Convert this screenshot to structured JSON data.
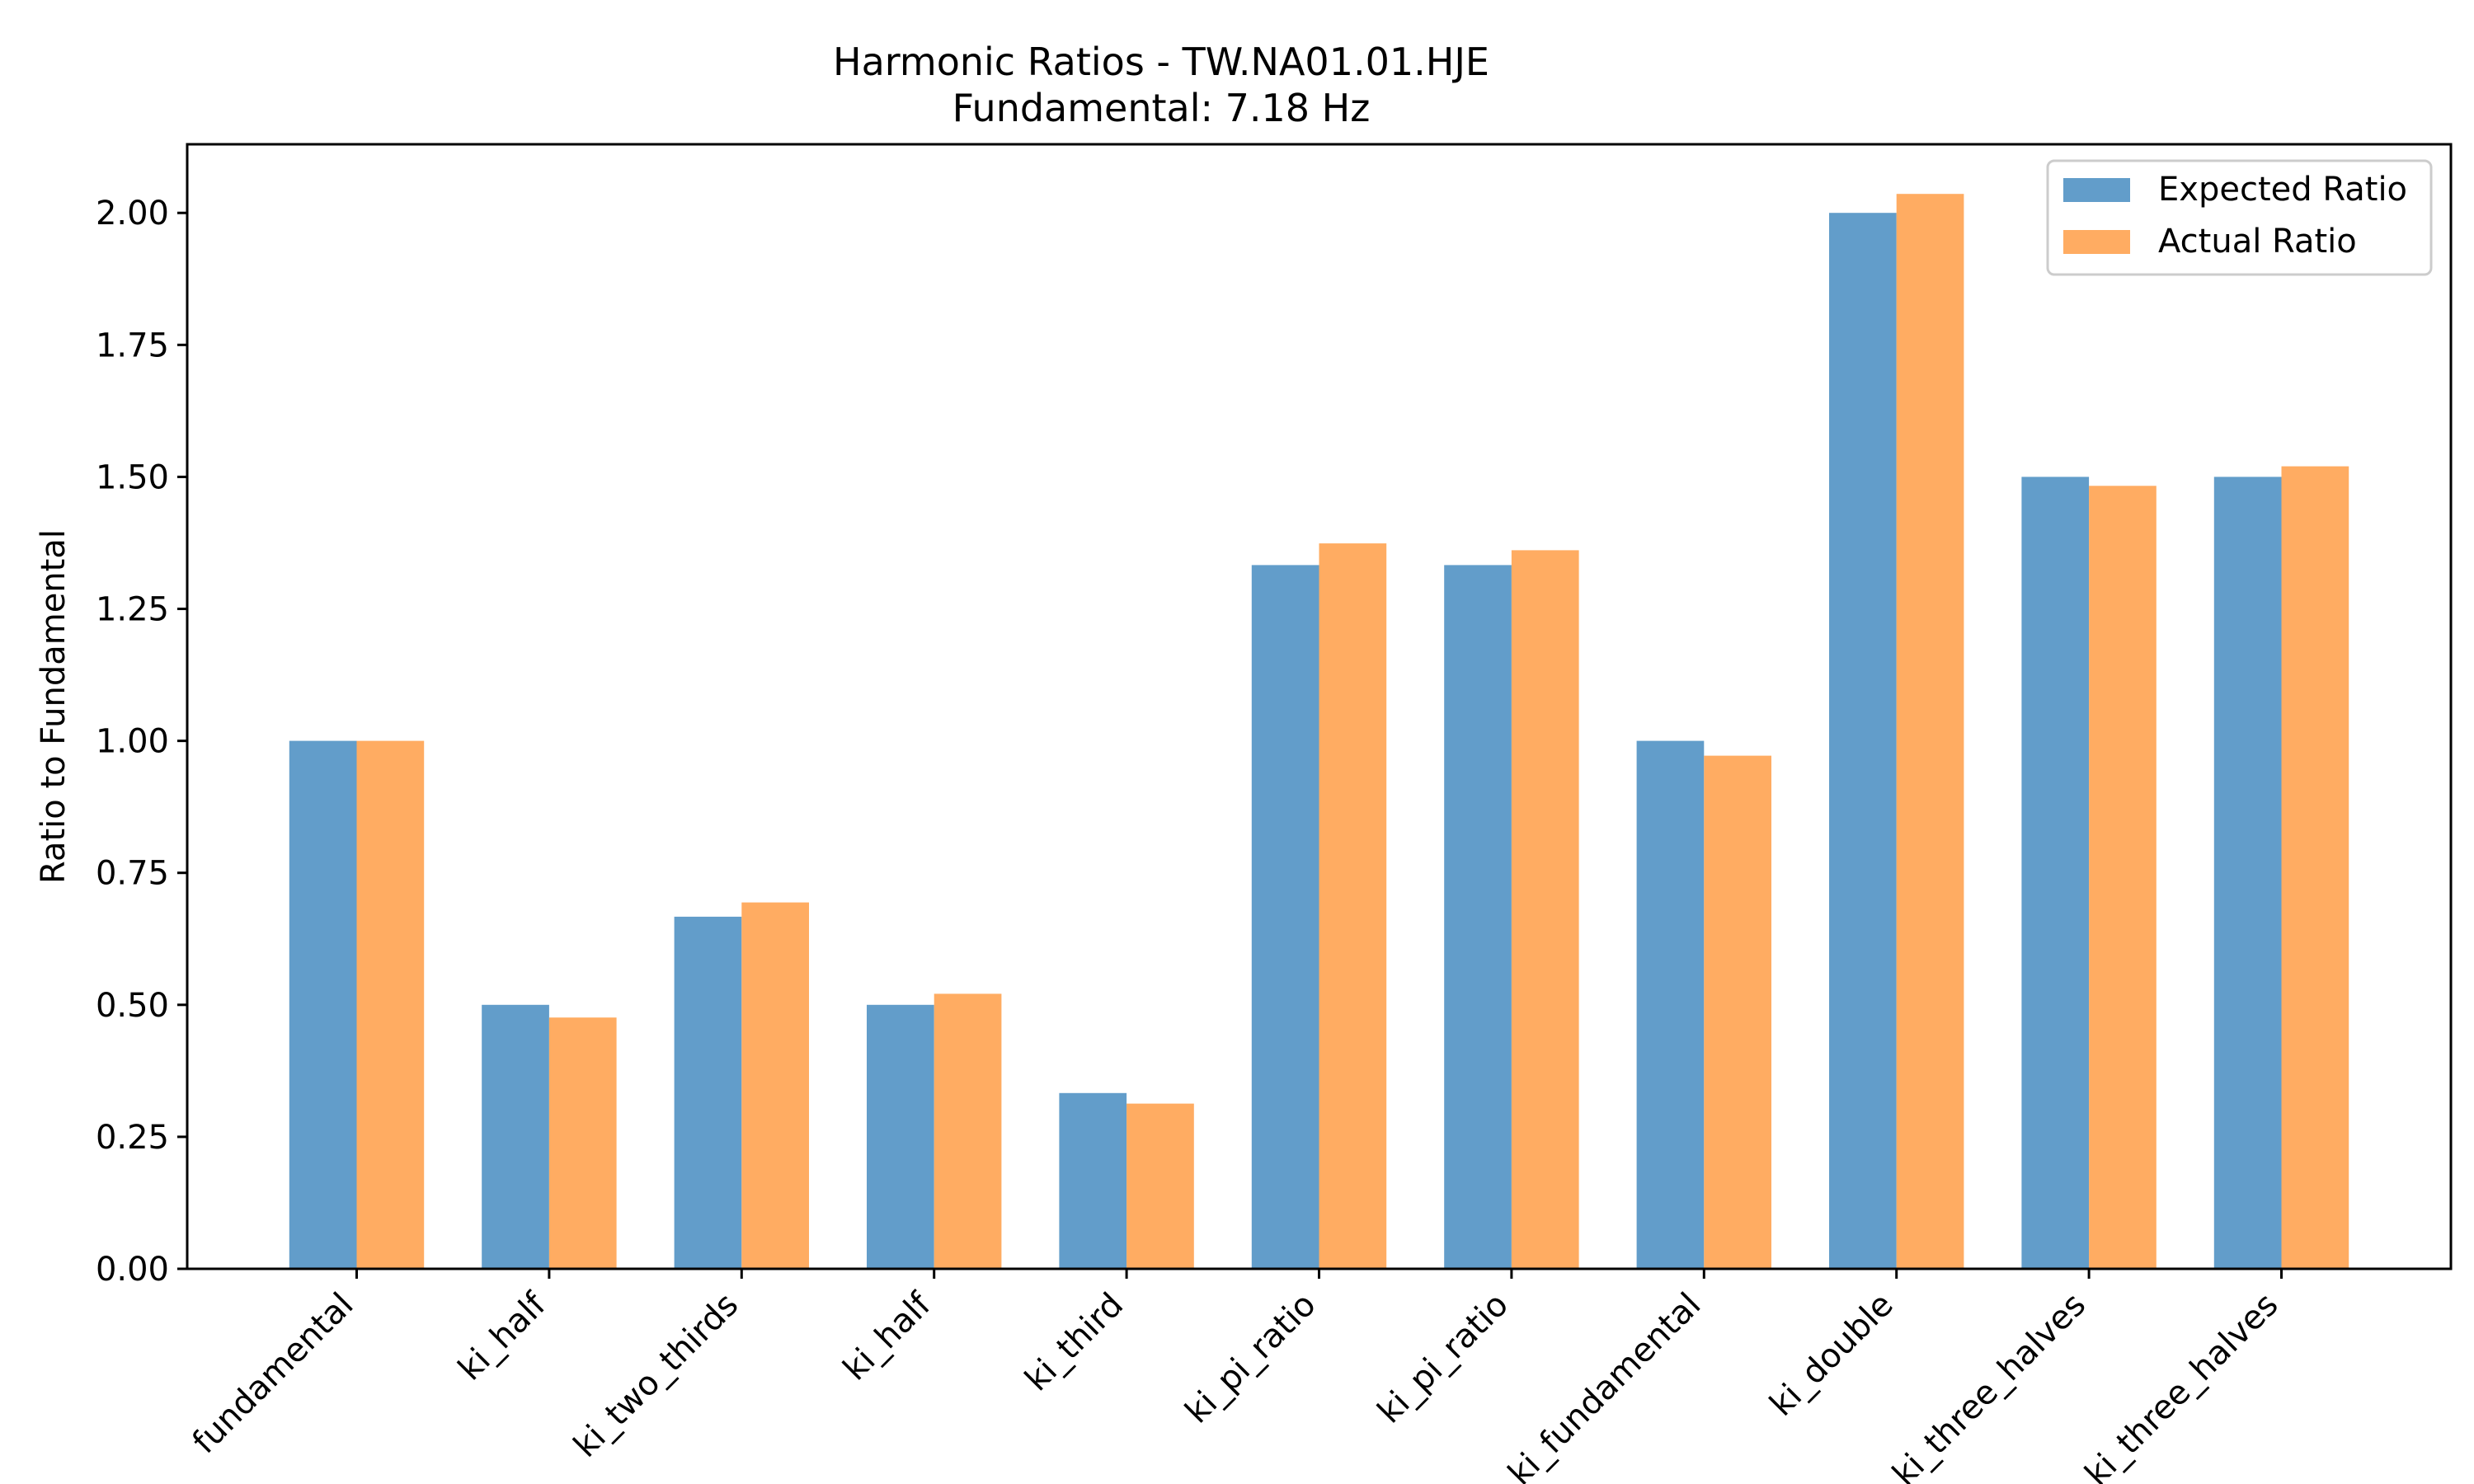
{
  "chart_data": {
    "type": "bar",
    "title": "Harmonic Ratios - TW.NA01.01.HJE",
    "subtitle": "Fundamental: 7.18 Hz",
    "xlabel": "",
    "ylabel": "Ratio to Fundamental",
    "ylim": [
      0,
      2.13
    ],
    "yticks": [
      "0.00",
      "0.25",
      "0.50",
      "0.75",
      "1.00",
      "1.25",
      "1.50",
      "1.75",
      "2.00"
    ],
    "categories": [
      "fundamental",
      "ki_half",
      "ki_two_thirds",
      "ki_half",
      "ki_third",
      "ki_pi_ratio",
      "ki_pi_ratio",
      "ki_fundamental",
      "ki_double",
      "ki_three_halves",
      "ki_three_halves"
    ],
    "series": [
      {
        "name": "Expected Ratio",
        "color": "#4c8fc3",
        "values": [
          1.0,
          0.5,
          0.667,
          0.5,
          0.333,
          1.333,
          1.333,
          1.0,
          2.0,
          1.5,
          1.5
        ]
      },
      {
        "name": "Actual Ratio",
        "color": "#ffa04c",
        "values": [
          1.0,
          0.476,
          0.694,
          0.521,
          0.313,
          1.374,
          1.361,
          0.972,
          2.036,
          1.483,
          1.52
        ]
      }
    ],
    "grid": false,
    "legend": "top-right",
    "bar_opacity": 0.88
  }
}
